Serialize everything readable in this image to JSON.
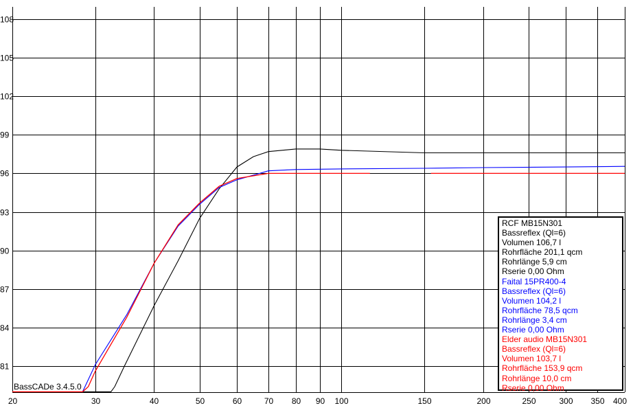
{
  "chart_data": {
    "type": "line",
    "title": "",
    "xlabel": "",
    "ylabel": "",
    "x_scale": "log",
    "xlim": [
      20,
      400
    ],
    "ylim": [
      79,
      109
    ],
    "grid": true,
    "x_ticks": [
      20,
      30,
      40,
      50,
      60,
      70,
      80,
      90,
      100,
      150,
      200,
      250,
      300,
      350,
      400
    ],
    "x_tick_labels": [
      "20",
      "30",
      "40",
      "50",
      "60",
      "70",
      "80",
      "90",
      "100",
      "150",
      "200",
      "250",
      "300",
      "350",
      "400"
    ],
    "y_ticks": [
      81,
      84,
      87,
      90,
      93,
      96,
      99,
      102,
      105,
      108
    ],
    "y_tick_labels": [
      "81",
      "84",
      "87",
      "90",
      "93",
      "96",
      "99",
      "102",
      "105",
      "108"
    ],
    "legend_placement": "bottom-right",
    "series": [
      {
        "name": "RCF MB15N301",
        "color": "#000000",
        "x": [
          28.2,
          32.4,
          33.0,
          34.6,
          40,
          45,
          50,
          55,
          60,
          65,
          70,
          80,
          90,
          100,
          150,
          200,
          300,
          400
        ],
        "y": [
          79,
          79,
          79.4,
          81,
          85.7,
          89.2,
          92.5,
          94.8,
          96.5,
          97.3,
          97.7,
          97.9,
          97.9,
          97.8,
          97.6,
          97.6,
          97.6,
          97.6
        ]
      },
      {
        "name": "Faital 15PR400-4",
        "color": "#0000ff",
        "x": [
          28.2,
          30,
          35,
          40,
          45,
          50,
          55,
          60,
          70,
          80,
          100,
          150,
          200,
          300,
          400
        ],
        "y": [
          79,
          81.1,
          85.0,
          89.0,
          91.9,
          93.6,
          94.9,
          95.5,
          96.2,
          96.3,
          96.35,
          96.4,
          96.45,
          96.5,
          96.55
        ]
      },
      {
        "name": "Elder audio MB15N301",
        "color": "#ff0000",
        "x": [
          20,
          28.2,
          29.0,
          30,
          35,
          40,
          45,
          50,
          55,
          60,
          70,
          80,
          100,
          115,
          155,
          200,
          300,
          400
        ],
        "y": [
          79,
          79,
          79.4,
          80.6,
          84.8,
          89.0,
          92.0,
          93.7,
          95.0,
          95.6,
          96.0,
          96.0,
          96.0,
          96.0,
          96.0,
          96.0,
          96.0,
          96.0
        ],
        "gap_between": [
          115,
          155
        ]
      }
    ]
  },
  "legend": {
    "groups": [
      {
        "color": "#000000",
        "lines": [
          "RCF MB15N301",
          "Bassreflex (Ql=6)",
          "Volumen 106,7 l",
          "Rohrfläche 201,1 qcm",
          "Rohrlänge 5,9 cm",
          "Rserie 0,00 Ohm"
        ]
      },
      {
        "color": "#0000ff",
        "lines": [
          "Faital 15PR400-4",
          "Bassreflex (Ql=6)",
          "Volumen 104,2 l",
          "Rohrfläche 78,5 qcm",
          "Rohrlänge 3,4 cm",
          "Rserie 0,00 Ohm"
        ]
      },
      {
        "color": "#ff0000",
        "lines": [
          "Elder audio MB15N301",
          "Bassreflex (Ql=6)",
          "Volumen 103,7 l",
          "Rohrfläche 153,9 qcm",
          "Rohrlänge 10,0 cm",
          "Rserie 0,00 Ohm"
        ]
      }
    ]
  },
  "version_label": "BassCADe 3.4.5.0"
}
